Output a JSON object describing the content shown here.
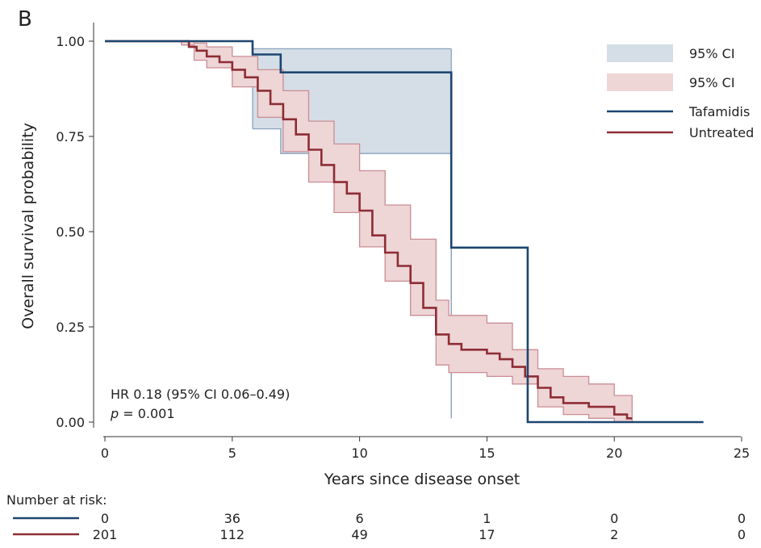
{
  "panel_label": "B",
  "annotations": {
    "hr_text": "HR 0.18 (95% CI 0.06–0.49)",
    "p_label": "p",
    "p_value_text": " = 0.001"
  },
  "risk_table": {
    "title": "Number at risk:",
    "times": [
      0,
      5,
      10,
      15,
      20,
      25
    ],
    "rows": [
      {
        "series": "Tafamidis",
        "counts": [
          "0",
          "36",
          "6",
          "1",
          "0",
          "0"
        ]
      },
      {
        "series": "Untreated",
        "counts": [
          "201",
          "112",
          "49",
          "17",
          "2",
          "0"
        ]
      }
    ]
  },
  "chart_data": {
    "type": "line",
    "subtype": "kaplan-meier step survival curves",
    "title": "",
    "xlabel": "Years since disease onset",
    "ylabel": "Overall survival probability",
    "xlim": [
      0,
      25
    ],
    "ylim": [
      0,
      1.0
    ],
    "x_ticks": [
      0,
      5,
      10,
      15,
      20,
      25
    ],
    "y_ticks": [
      0,
      0.25,
      0.5,
      0.75,
      1.0
    ],
    "y_tick_labels": [
      "0.00",
      "0.25",
      "0.50",
      "0.75",
      "1.00"
    ],
    "grid": false,
    "legend_position": "top-right",
    "legend": [
      {
        "label": "95% CI",
        "kind": "band",
        "series": "Tafamidis"
      },
      {
        "label": "95% CI",
        "kind": "band",
        "series": "Untreated"
      },
      {
        "label": "Tafamidis",
        "kind": "line"
      },
      {
        "label": "Untreated",
        "kind": "line"
      }
    ],
    "series": [
      {
        "name": "Tafamidis",
        "color": "#1d4670",
        "band_color": "#d5dee6",
        "band_edge": "#8aa3bf",
        "steps": [
          [
            0,
            1.0
          ],
          [
            5.8,
            0.965
          ],
          [
            6.9,
            0.918
          ],
          [
            13.6,
            0.458
          ],
          [
            16.6,
            0.0
          ],
          [
            23.5,
            0.0
          ]
        ],
        "ci_upper": [
          [
            5.8,
            0.98
          ],
          [
            13.6,
            0.98
          ]
        ],
        "ci_lower": [
          [
            5.8,
            0.77
          ],
          [
            6.9,
            0.705
          ],
          [
            13.6,
            0.01
          ]
        ]
      },
      {
        "name": "Untreated",
        "color": "#8e2c34",
        "band_color": "#eed5d6",
        "band_edge": "#c98d93",
        "steps": [
          [
            0,
            1.0
          ],
          [
            3.0,
            1.0
          ],
          [
            3.3,
            0.985
          ],
          [
            3.6,
            0.975
          ],
          [
            4.0,
            0.96
          ],
          [
            4.5,
            0.945
          ],
          [
            5.0,
            0.925
          ],
          [
            5.5,
            0.905
          ],
          [
            6.0,
            0.87
          ],
          [
            6.5,
            0.835
          ],
          [
            7.0,
            0.795
          ],
          [
            7.5,
            0.755
          ],
          [
            8.0,
            0.715
          ],
          [
            8.5,
            0.675
          ],
          [
            9.0,
            0.63
          ],
          [
            9.5,
            0.6
          ],
          [
            10.0,
            0.555
          ],
          [
            10.5,
            0.49
          ],
          [
            11.0,
            0.445
          ],
          [
            11.5,
            0.41
          ],
          [
            12.0,
            0.365
          ],
          [
            12.5,
            0.3
          ],
          [
            13.0,
            0.23
          ],
          [
            13.5,
            0.205
          ],
          [
            14.0,
            0.19
          ],
          [
            15.0,
            0.18
          ],
          [
            15.5,
            0.165
          ],
          [
            16.0,
            0.145
          ],
          [
            16.5,
            0.12
          ],
          [
            17.0,
            0.09
          ],
          [
            17.5,
            0.065
          ],
          [
            18.0,
            0.05
          ],
          [
            19.0,
            0.04
          ],
          [
            20.0,
            0.02
          ],
          [
            20.5,
            0.01
          ],
          [
            20.7,
            0.01
          ]
        ],
        "ci_upper": [
          [
            3.0,
            1.0
          ],
          [
            3.5,
            0.995
          ],
          [
            4.0,
            0.985
          ],
          [
            5.0,
            0.96
          ],
          [
            6.0,
            0.925
          ],
          [
            7.0,
            0.87
          ],
          [
            8.0,
            0.79
          ],
          [
            9.0,
            0.73
          ],
          [
            10.0,
            0.66
          ],
          [
            11.0,
            0.57
          ],
          [
            12.0,
            0.48
          ],
          [
            13.0,
            0.32
          ],
          [
            13.5,
            0.28
          ],
          [
            15.0,
            0.26
          ],
          [
            16.0,
            0.19
          ],
          [
            17.0,
            0.14
          ],
          [
            18.0,
            0.12
          ],
          [
            19.0,
            0.1
          ],
          [
            20.0,
            0.07
          ],
          [
            20.7,
            0.06
          ]
        ],
        "ci_lower": [
          [
            3.0,
            0.99
          ],
          [
            3.5,
            0.95
          ],
          [
            4.0,
            0.93
          ],
          [
            5.0,
            0.88
          ],
          [
            6.0,
            0.8
          ],
          [
            7.0,
            0.71
          ],
          [
            8.0,
            0.63
          ],
          [
            9.0,
            0.55
          ],
          [
            10.0,
            0.46
          ],
          [
            11.0,
            0.37
          ],
          [
            12.0,
            0.28
          ],
          [
            13.0,
            0.15
          ],
          [
            13.5,
            0.13
          ],
          [
            15.0,
            0.12
          ],
          [
            16.0,
            0.1
          ],
          [
            17.0,
            0.04
          ],
          [
            18.0,
            0.02
          ],
          [
            19.0,
            0.01
          ],
          [
            20.0,
            0.0
          ],
          [
            20.7,
            0.0
          ]
        ]
      }
    ]
  }
}
